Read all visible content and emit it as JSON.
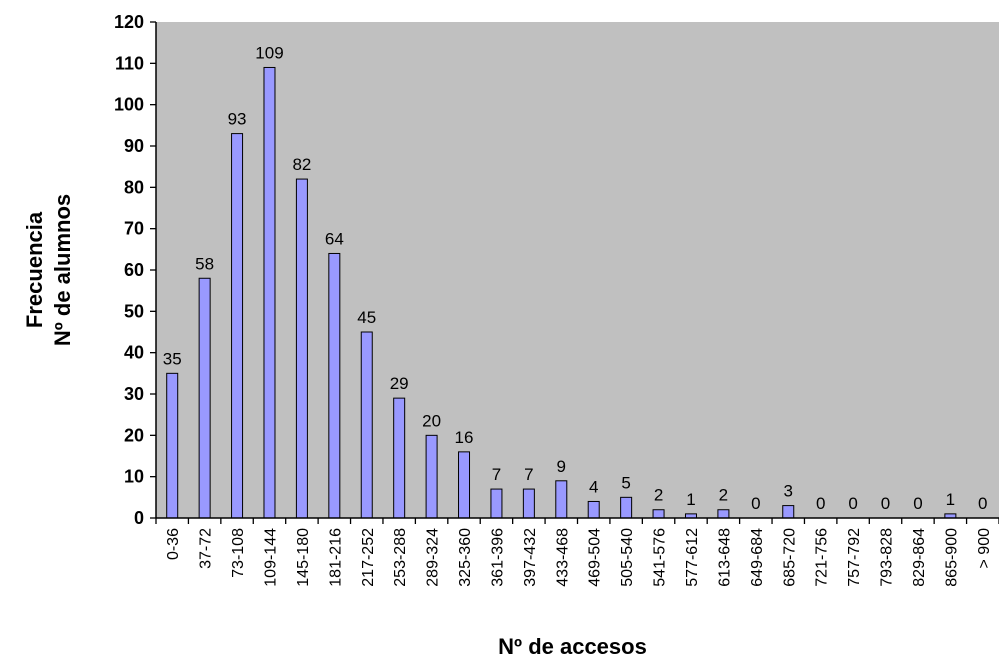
{
  "chart_data": {
    "type": "bar",
    "title": "",
    "xlabel": "Nº de accesos",
    "ylabel": [
      "Frecuencia",
      "Nº de alumnos"
    ],
    "ylim": [
      0,
      120
    ],
    "yticks": [
      0,
      10,
      20,
      30,
      40,
      50,
      60,
      70,
      80,
      90,
      100,
      110,
      120
    ],
    "grid": false,
    "legend": "none",
    "categories": [
      "0-36",
      "37-72",
      "73-108",
      "109-144",
      "145-180",
      "181-216",
      "217-252",
      "253-288",
      "289-324",
      "325-360",
      "361-396",
      "397-432",
      "433-468",
      "469-504",
      "505-540",
      "541-576",
      "577-612",
      "613-648",
      "649-684",
      "685-720",
      "721-756",
      "757-792",
      "793-828",
      "829-864",
      "865-900",
      "> 900"
    ],
    "values": [
      35,
      58,
      93,
      109,
      82,
      64,
      45,
      29,
      20,
      16,
      7,
      7,
      9,
      4,
      5,
      2,
      1,
      2,
      0,
      3,
      0,
      0,
      0,
      0,
      1,
      0
    ],
    "colors": {
      "plot_background": "#c0c0c0",
      "bar_fill": "#9999ff",
      "bar_stroke": "#000000"
    }
  }
}
